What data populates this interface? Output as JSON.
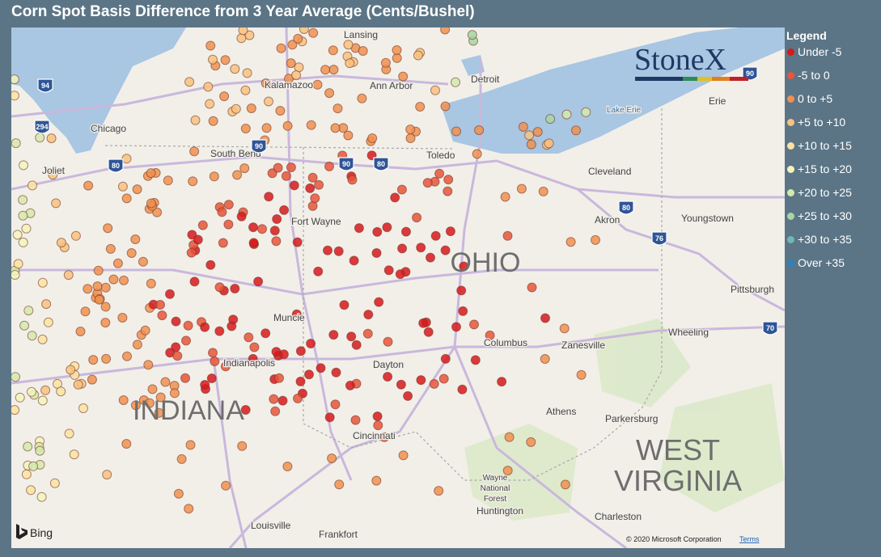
{
  "title": "Corn Spot Basis Difference from 3 Year Average (Cents/Bushel)",
  "legend": {
    "title": "Legend",
    "items": [
      {
        "label": "Under -5",
        "color": "#d7191c"
      },
      {
        "label": "-5 to 0",
        "color": "#e8553a"
      },
      {
        "label": "0 to +5",
        "color": "#f0914f"
      },
      {
        "label": "+5 to +10",
        "color": "#f8c27f"
      },
      {
        "label": "+10 to +15",
        "color": "#fbe3a0"
      },
      {
        "label": "+15 to +20",
        "color": "#f2f4bc"
      },
      {
        "label": "+20 to +25",
        "color": "#d3eaaa"
      },
      {
        "label": "+25 to +30",
        "color": "#a6d6a3"
      },
      {
        "label": "+30 to +35",
        "color": "#6fb8b0"
      },
      {
        "label": "Over +35",
        "color": "#2b83ba"
      }
    ]
  },
  "logo": "StoneX",
  "map": {
    "labels": [
      "Lansing",
      "Kalamazoo",
      "Ann Arbor",
      "Detroit",
      "Chicago",
      "South Bend",
      "Toledo",
      "Joliet",
      "Cleveland",
      "Lake Erie",
      "Erie",
      "Fort Wayne",
      "Akron",
      "Youngstown",
      "Pittsburgh",
      "Muncie",
      "Columbus",
      "Zanesville",
      "Wheeling",
      "Indianapolis",
      "Dayton",
      "Athens",
      "Parkersburg",
      "Cincinnati",
      "Huntington",
      "Charleston",
      "Louisville",
      "Frankfort",
      "Wayne",
      "National",
      "Forest"
    ],
    "states": [
      "OHIO",
      "INDIANA",
      "WEST",
      "VIRGINIA"
    ],
    "shields": [
      "94",
      "294",
      "80",
      "90",
      "90",
      "80",
      "80",
      "76",
      "70",
      "90"
    ]
  },
  "attribution": {
    "bing": "Bing",
    "copyright": "© 2020 Microsoft Corporation",
    "terms": "Terms"
  }
}
